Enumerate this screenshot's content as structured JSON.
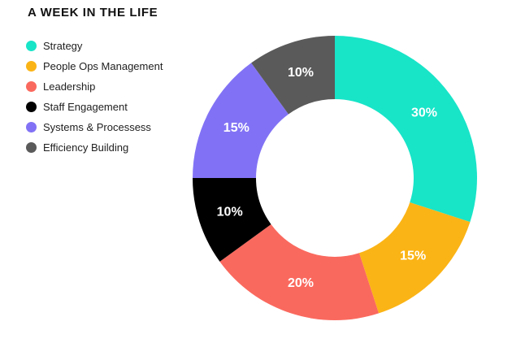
{
  "title": "A WEEK IN THE LIFE",
  "legend": {
    "items": [
      {
        "label": "Strategy",
        "color": "#18E4C8"
      },
      {
        "label": "People Ops Management",
        "color": "#FBB416"
      },
      {
        "label": "Leadership",
        "color": "#FA695E"
      },
      {
        "label": "Staff Engagement",
        "color": "#000000"
      },
      {
        "label": "Systems & Processess",
        "color": "#8172F5"
      },
      {
        "label": "Efficiency Building",
        "color": "#5A5A5A"
      }
    ]
  },
  "chart_data": {
    "type": "pie",
    "subtype": "donut",
    "title": "A WEEK IN THE LIFE",
    "categories": [
      "Strategy",
      "People Ops Management",
      "Leadership",
      "Staff Engagement",
      "Systems & Processess",
      "Efficiency Building"
    ],
    "values": [
      30,
      15,
      20,
      10,
      15,
      10
    ],
    "unit": "%",
    "data_labels": [
      "30%",
      "15%",
      "20%",
      "10%",
      "15%",
      "10%"
    ],
    "colors": [
      "#18E4C8",
      "#FBB416",
      "#FA695E",
      "#000000",
      "#8172F5",
      "#5A5A5A"
    ],
    "start_angle_deg": 0,
    "direction": "clockwise",
    "legend_position": "top-left",
    "data_label_color": "#FFFFFF",
    "background_color": "#FFFFFF"
  }
}
